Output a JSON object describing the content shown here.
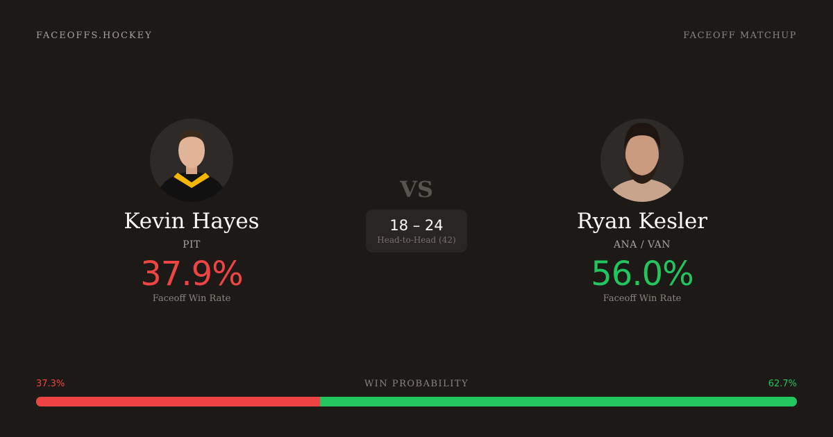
{
  "header": {
    "brand": "FACEOFFS.HOCKEY",
    "tag": "FACEOFF MATCHUP"
  },
  "players": [
    {
      "name": "Kevin Hayes",
      "team": "PIT",
      "rate": "37.9%",
      "rate_label": "Faceoff Win Rate",
      "color": "#ef4444"
    },
    {
      "name": "Ryan Kesler",
      "team": "ANA / VAN",
      "rate": "56.0%",
      "rate_label": "Faceoff Win Rate",
      "color": "#22c55e"
    }
  ],
  "matchup": {
    "vs": "VS",
    "score": "18 – 24",
    "label": "Head-to-Head (42)"
  },
  "probability": {
    "label": "WIN PROBABILITY",
    "left": "37.3%",
    "right": "62.7%",
    "left_fraction": 0.373
  }
}
